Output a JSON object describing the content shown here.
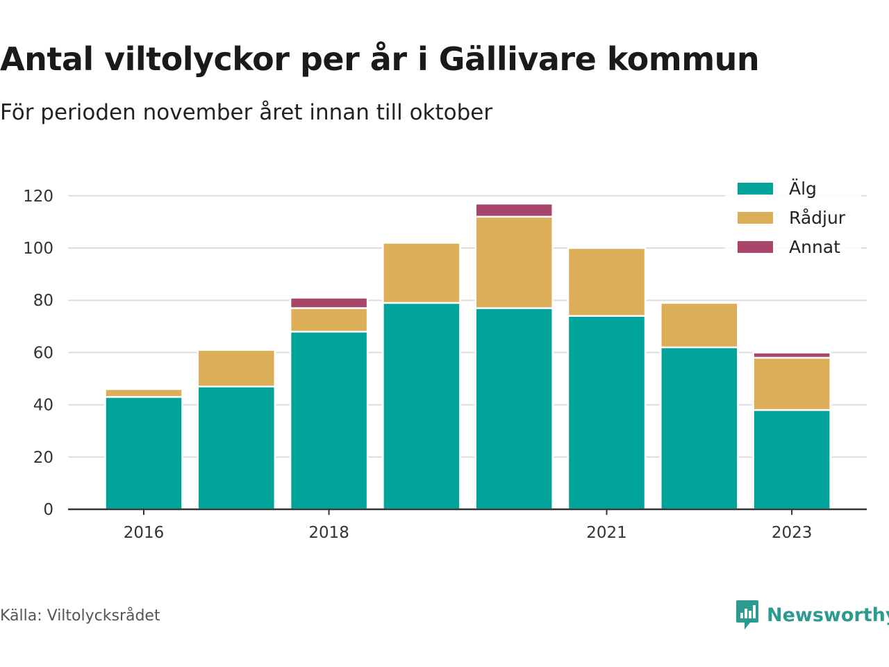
{
  "title": "Antal viltolyckor per år i Gällivare kommun",
  "subtitle": "För perioden november året innan till oktober",
  "source": "Källa: Viltolycksrådet",
  "brand": {
    "name": "Newsworthy",
    "icon": "newsworthy-logo-icon",
    "color": "#2b9a8f"
  },
  "chart_data": {
    "type": "bar",
    "stacked": true,
    "categories": [
      2016,
      2017,
      2018,
      2019,
      2020,
      2021,
      2022,
      2023
    ],
    "x_tick_labels": [
      "2016",
      "2018",
      "2021",
      "2023"
    ],
    "y_ticks": [
      0,
      20,
      40,
      60,
      80,
      100,
      120
    ],
    "ylim": [
      0,
      125
    ],
    "grid": true,
    "legend_position": "top-right",
    "series": [
      {
        "name": "Älg",
        "color": "#00a39a",
        "values": [
          43,
          47,
          68,
          79,
          77,
          74,
          62,
          38
        ]
      },
      {
        "name": "Rådjur",
        "color": "#dcae58",
        "values": [
          3,
          14,
          9,
          23,
          35,
          26,
          17,
          20
        ]
      },
      {
        "name": "Annat",
        "color": "#a8456b",
        "values": [
          0,
          0,
          4,
          0,
          5,
          0,
          0,
          2
        ]
      }
    ]
  }
}
